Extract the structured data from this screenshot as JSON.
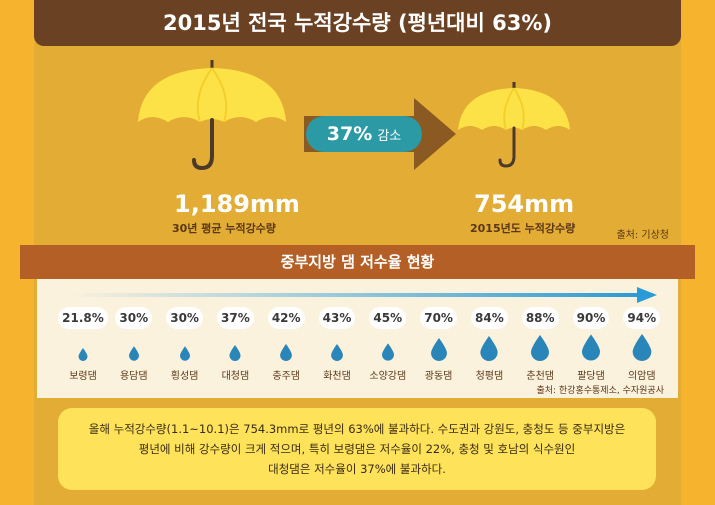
{
  "title": "2015년 전국 누적강수량 (평년대비 63%)",
  "comparison": {
    "left_value": "1,189mm",
    "left_label": "30년 평균 누적강수량",
    "right_value": "754mm",
    "right_label": "2015년도 누적강수량",
    "reduction_pct": "37%",
    "reduction_label": "감소",
    "source": "출처: 기상청"
  },
  "section_title": "중부지방 댐 저수율 현황",
  "chart_data": {
    "type": "bar",
    "title": "중부지방 댐 저수율 현황",
    "categories": [
      "보령댐",
      "용담댐",
      "횡성댐",
      "대청댐",
      "충주댐",
      "화천댐",
      "소양강댐",
      "광동댐",
      "청평댐",
      "춘천댐",
      "팔당댐",
      "의암댐"
    ],
    "values": [
      21.8,
      30,
      30,
      37,
      42,
      43,
      45,
      70,
      84,
      88,
      90,
      94
    ],
    "value_labels": [
      "21.8%",
      "30%",
      "30%",
      "37%",
      "42%",
      "43%",
      "45%",
      "70%",
      "84%",
      "88%",
      "90%",
      "94%"
    ],
    "unit": "%",
    "source": "출처: 한강홍수통제소, 수자원공사"
  },
  "summary_lines": [
    "올해 누적강수량(1.1~10.1)은 754.3mm로 평년의 63%에 불과하다. 수도권과 강원도, 충청도 등 중부지방은",
    "평년에 비해 강수량이 크게 적으며, 특히 보령댐은 저수율이 22%, 충청 및 호남의 식수원인",
    "대청댐은 저수율이 37%에 불과하다."
  ],
  "colors": {
    "background": "#f5b32e",
    "panel": "#e3ad35",
    "title_bar": "#6a4122",
    "umbrella": "#fde247",
    "arrow": "#8a5a22",
    "badge": "#2b9aa5",
    "ribbon": "#b45f26",
    "drop": "#2a86b8"
  }
}
